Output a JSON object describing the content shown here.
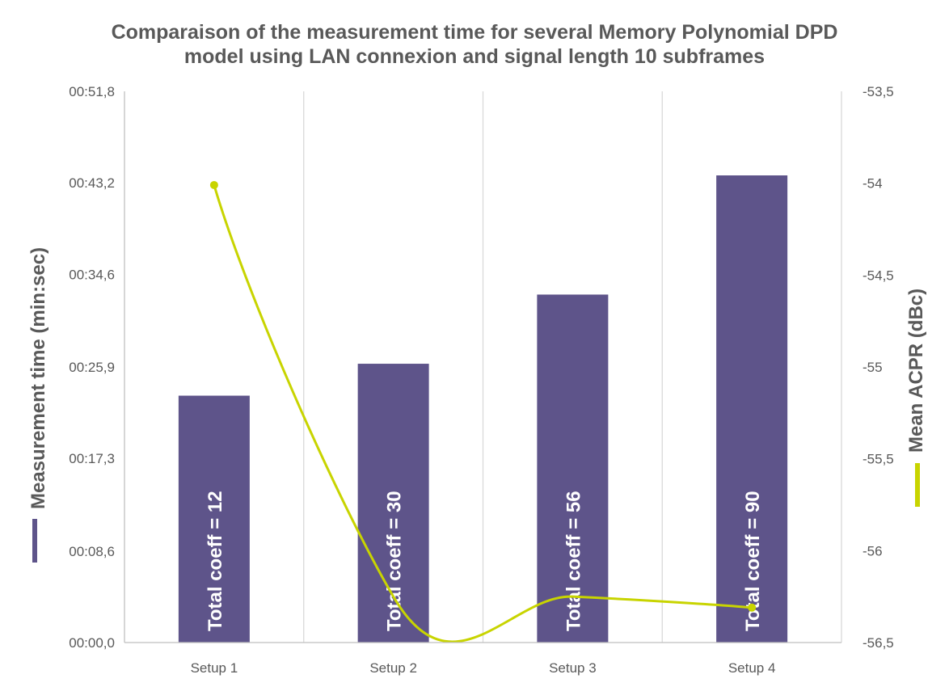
{
  "chart_data": {
    "type": "bar",
    "title_lines": [
      "Comparaison of the measurement time for several Memory Polynomial DPD",
      "model using LAN connexion and signal length 10 subframes"
    ],
    "categories": [
      "Setup 1",
      "Setup 2",
      "Setup 3",
      "Setup 4"
    ],
    "y_left": {
      "label": "Measurement time (min:sec)",
      "ticks": [
        "00:00,0",
        "00:08,6",
        "00:17,3",
        "00:25,9",
        "00:34,6",
        "00:43,2",
        "00:51,8"
      ],
      "tick_values_sec": [
        0,
        8.6,
        17.3,
        25.9,
        34.6,
        43.2,
        51.8
      ],
      "min": 0,
      "max": 51.8
    },
    "y_right": {
      "label": "Mean ACPR (dBc)",
      "ticks": [
        "-53,5",
        "-54",
        "-54,5",
        "-55",
        "-55,5",
        "-56",
        "-56,5"
      ],
      "tick_values": [
        -53.5,
        -54,
        -54.5,
        -55,
        -55.5,
        -56,
        -56.5
      ],
      "min": -56.5,
      "max": -53.5
    },
    "series": [
      {
        "type": "bar",
        "axis": "left",
        "color": "#5e548a",
        "values_sec": [
          23.2,
          26.2,
          32.7,
          43.9
        ],
        "labels": [
          "Total coeff = 12",
          "Total coeff = 30",
          "Total coeff = 56",
          "Total coeff = 90"
        ]
      },
      {
        "type": "line",
        "axis": "right",
        "color": "#c8d400",
        "smooth": true,
        "markers": "first-and-last",
        "values": [
          -54.01,
          -56.25,
          -56.25,
          -56.31
        ]
      }
    ],
    "grid": "vertical",
    "legend": "axis-title swatches"
  }
}
